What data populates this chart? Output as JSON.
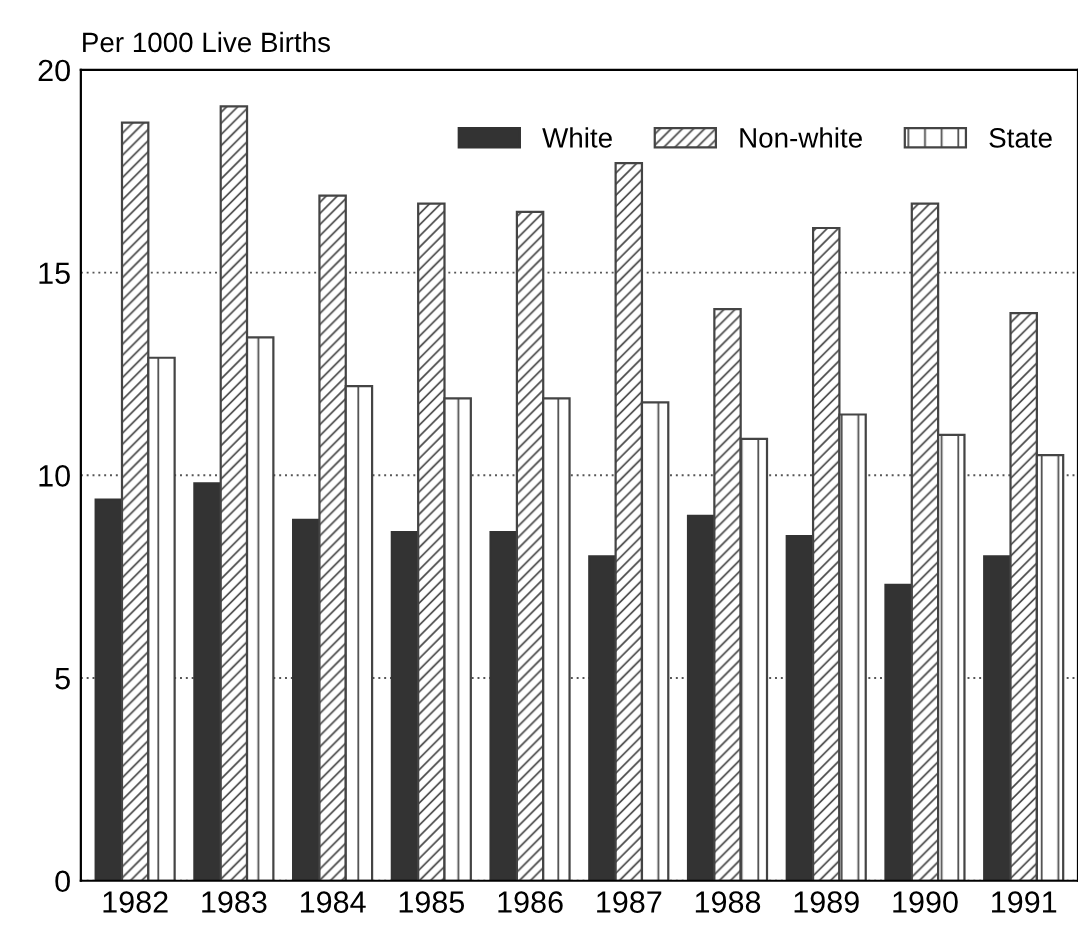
{
  "chart_data": {
    "type": "bar",
    "ylabel": "Per 1000 Live Births",
    "categories": [
      "1982",
      "1983",
      "1984",
      "1985",
      "1986",
      "1987",
      "1988",
      "1989",
      "1990",
      "1991"
    ],
    "series": [
      {
        "name": "White",
        "color": "#333333",
        "values": [
          9.4,
          9.8,
          8.9,
          8.6,
          8.6,
          8.0,
          9.0,
          8.5,
          7.3,
          8.0
        ]
      },
      {
        "name": "Non-white",
        "color": "#444444",
        "values": [
          18.7,
          19.1,
          16.9,
          16.7,
          16.5,
          17.7,
          14.1,
          16.1,
          16.7,
          14.0
        ]
      },
      {
        "name": "State",
        "color": "#444444",
        "values": [
          12.9,
          13.4,
          12.2,
          11.9,
          11.9,
          11.8,
          10.9,
          11.5,
          11.0,
          10.5
        ]
      }
    ],
    "ylim": [
      0,
      20
    ],
    "yticks": [
      0,
      5,
      10,
      15,
      20
    ],
    "grid": "y",
    "legend": "top right"
  }
}
